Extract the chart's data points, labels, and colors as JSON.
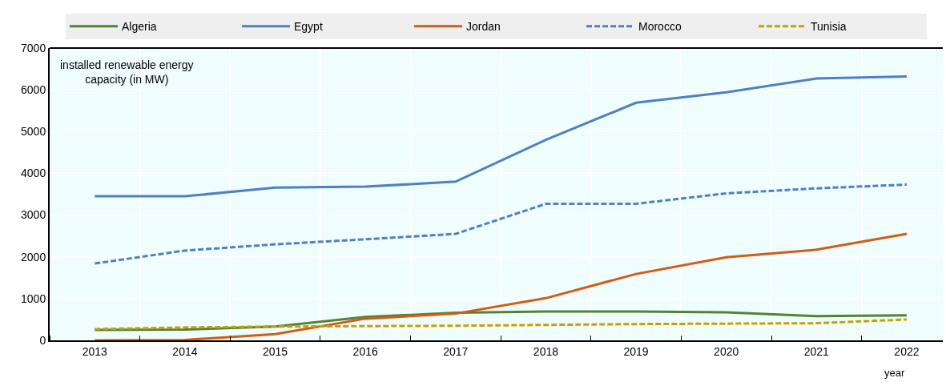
{
  "chart_data": {
    "type": "line",
    "ylabel": "installed renewable energy\ncapacity (in MW)",
    "xlabel": "year",
    "x": [
      2013,
      2014,
      2015,
      2016,
      2017,
      2018,
      2019,
      2020,
      2021,
      2022
    ],
    "series": [
      {
        "name": "Algeria",
        "color": "#548235",
        "line_style": "solid",
        "values": [
          250,
          260,
          330,
          560,
          660,
          690,
          690,
          670,
          580,
          600
        ]
      },
      {
        "name": "Egypt",
        "color": "#4e81c4",
        "line_style": "solid",
        "values": [
          3450,
          3450,
          3660,
          3680,
          3800,
          4800,
          5690,
          5940,
          6270,
          6320
        ]
      },
      {
        "name": "Jordan",
        "color": "#d35c16",
        "line_style": "solid",
        "values": [
          0,
          10,
          150,
          520,
          640,
          1010,
          1590,
          1990,
          2170,
          2550
        ]
      },
      {
        "name": "Morocco",
        "color": "#4e81c4",
        "line_style": "dashed",
        "values": [
          1840,
          2150,
          2300,
          2420,
          2550,
          3270,
          3270,
          3520,
          3640,
          3730
        ]
      },
      {
        "name": "Tunisia",
        "color": "#c9a000",
        "line_style": "dashed",
        "values": [
          270,
          310,
          330,
          340,
          350,
          370,
          390,
          400,
          410,
          500
        ]
      }
    ],
    "xlim": [
      2012.5,
      2022.4
    ],
    "xticks": [
      2013,
      2014,
      2015,
      2016,
      2017,
      2018,
      2019,
      2020,
      2021,
      2022
    ],
    "ylim": [
      0,
      7000
    ],
    "yticks": [
      0,
      1000,
      2000,
      3000,
      4000,
      5000,
      6000,
      7000
    ],
    "grid": true,
    "legend": "top",
    "marker": "none"
  }
}
